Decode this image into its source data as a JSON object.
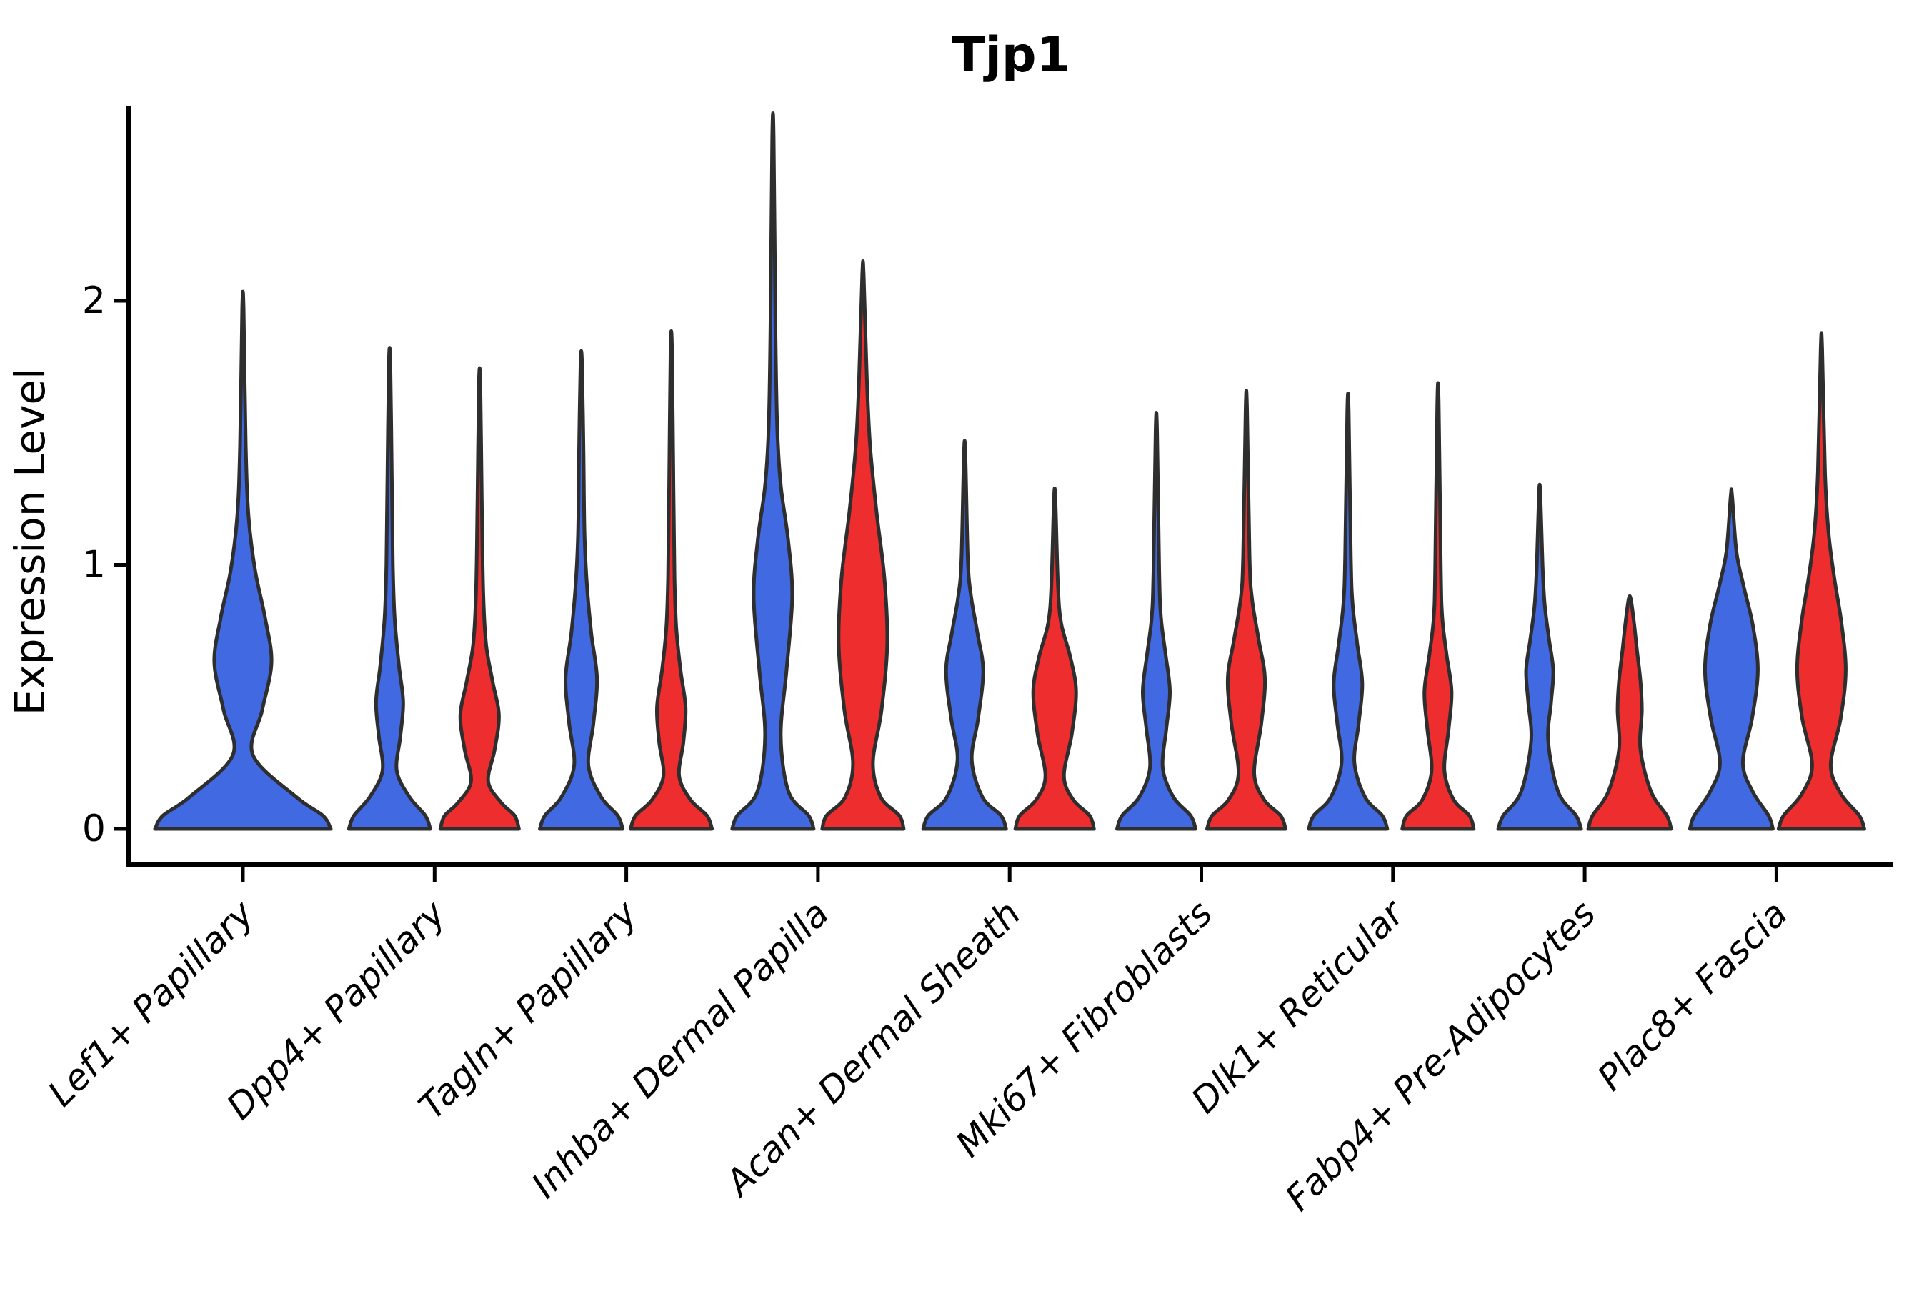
{
  "title": "Tjp1",
  "colors": {
    "violin_blue": "#4169E1",
    "violin_red": "#EE2E2E",
    "violin_outline": "#2E2E2E",
    "axis": "#000000"
  },
  "chart_data": {
    "type": "violin",
    "title": "Tjp1",
    "xlabel": "",
    "ylabel": "Expression Level",
    "yticks": [
      0,
      1,
      2
    ],
    "ylim": [
      -0.24,
      2.73
    ],
    "grid": false,
    "legend_position": "none",
    "xticklabel_rotation_deg": 45,
    "xticklabel_style": "italic",
    "categories": [
      "Lef1+ Papillary",
      "Dpp4+ Papillary",
      "Tagln+ Papillary",
      "Inhba+ Dermal Papilla",
      "Acan+ Dermal Sheath",
      "Mki67+ Fibroblasts",
      "Dlk1+ Reticular",
      "Fabp4+ Pre-Adipocytes",
      "Plac8+ Fascia"
    ],
    "series_colors": {
      "left_violin": "#4169E1",
      "right_violin": "#EE2E2E"
    },
    "groups": [
      {
        "category": "Lef1+ Papillary",
        "violins": [
          {
            "side": "single",
            "color": "#4169E1",
            "max": 1.97,
            "profile": [
              [
                0,
                123
              ],
              [
                0.05,
                112
              ],
              [
                0.12,
                75
              ],
              [
                0.28,
                14
              ],
              [
                0.45,
                27
              ],
              [
                0.63,
                40
              ],
              [
                0.8,
                31
              ],
              [
                0.98,
                17
              ],
              [
                1.18,
                8
              ],
              [
                1.45,
                4
              ],
              [
                1.97,
                1
              ]
            ]
          }
        ]
      },
      {
        "category": "Dpp4+ Papillary",
        "violins": [
          {
            "side": "left",
            "color": "#4169E1",
            "max": 1.77,
            "profile": [
              [
                0,
                57
              ],
              [
                0.05,
                50
              ],
              [
                0.12,
                28
              ],
              [
                0.22,
                10
              ],
              [
                0.35,
                15
              ],
              [
                0.48,
                19
              ],
              [
                0.62,
                13
              ],
              [
                0.8,
                7
              ],
              [
                1.0,
                4.5
              ],
              [
                1.35,
                3
              ],
              [
                1.77,
                1
              ]
            ]
          },
          {
            "side": "right",
            "color": "#EE2E2E",
            "max": 1.69,
            "profile": [
              [
                0,
                55
              ],
              [
                0.05,
                49
              ],
              [
                0.1,
                30
              ],
              [
                0.18,
                12
              ],
              [
                0.3,
                21
              ],
              [
                0.43,
                27
              ],
              [
                0.56,
                18
              ],
              [
                0.7,
                9
              ],
              [
                0.9,
                5
              ],
              [
                1.25,
                3
              ],
              [
                1.69,
                1
              ]
            ]
          }
        ]
      },
      {
        "category": "Tagln+ Papillary",
        "violins": [
          {
            "side": "left",
            "color": "#4169E1",
            "max": 1.77,
            "profile": [
              [
                0,
                58
              ],
              [
                0.05,
                51
              ],
              [
                0.12,
                28
              ],
              [
                0.24,
                10
              ],
              [
                0.4,
                17
              ],
              [
                0.57,
                22
              ],
              [
                0.74,
                14
              ],
              [
                0.92,
                8
              ],
              [
                1.12,
                4.5
              ],
              [
                1.45,
                3
              ],
              [
                1.77,
                1
              ]
            ]
          },
          {
            "side": "right",
            "color": "#EE2E2E",
            "max": 1.82,
            "profile": [
              [
                0,
                57
              ],
              [
                0.05,
                50
              ],
              [
                0.11,
                27
              ],
              [
                0.2,
                11
              ],
              [
                0.33,
                17
              ],
              [
                0.46,
                20
              ],
              [
                0.6,
                13
              ],
              [
                0.76,
                7
              ],
              [
                0.95,
                4.5
              ],
              [
                1.3,
                3
              ],
              [
                1.82,
                1
              ]
            ]
          }
        ]
      },
      {
        "category": "Inhba+ Dermal Papilla",
        "violins": [
          {
            "side": "left",
            "color": "#4169E1",
            "max": 2.62,
            "profile": [
              [
                0,
                57
              ],
              [
                0.05,
                50
              ],
              [
                0.14,
                22
              ],
              [
                0.35,
                11
              ],
              [
                0.6,
                19
              ],
              [
                0.88,
                27
              ],
              [
                1.1,
                21
              ],
              [
                1.3,
                11
              ],
              [
                1.52,
                6
              ],
              [
                1.9,
                3.5
              ],
              [
                2.62,
                1
              ]
            ]
          },
          {
            "side": "right",
            "color": "#EE2E2E",
            "max": 2.1,
            "profile": [
              [
                0,
                57
              ],
              [
                0.05,
                51
              ],
              [
                0.12,
                25
              ],
              [
                0.25,
                14
              ],
              [
                0.45,
                26
              ],
              [
                0.7,
                34
              ],
              [
                0.95,
                30
              ],
              [
                1.2,
                19
              ],
              [
                1.45,
                10
              ],
              [
                1.7,
                5.5
              ],
              [
                2.1,
                1
              ]
            ]
          }
        ]
      },
      {
        "category": "Acan+ Dermal Sheath",
        "violins": [
          {
            "side": "left",
            "color": "#4169E1",
            "max": 1.42,
            "profile": [
              [
                0,
                58
              ],
              [
                0.05,
                51
              ],
              [
                0.12,
                25
              ],
              [
                0.26,
                10
              ],
              [
                0.42,
                19
              ],
              [
                0.6,
                26
              ],
              [
                0.74,
                18
              ],
              [
                0.88,
                9
              ],
              [
                1.02,
                4.5
              ],
              [
                1.42,
                1
              ]
            ]
          },
          {
            "side": "right",
            "color": "#EE2E2E",
            "max": 1.25,
            "profile": [
              [
                0,
                55
              ],
              [
                0.05,
                49
              ],
              [
                0.11,
                26
              ],
              [
                0.2,
                13
              ],
              [
                0.36,
                24
              ],
              [
                0.52,
                30
              ],
              [
                0.65,
                22
              ],
              [
                0.78,
                9
              ],
              [
                0.93,
                4.5
              ],
              [
                1.25,
                1
              ]
            ]
          }
        ]
      },
      {
        "category": "Mki67+ Fibroblasts",
        "violins": [
          {
            "side": "left",
            "color": "#4169E1",
            "max": 1.51,
            "profile": [
              [
                0,
                55
              ],
              [
                0.05,
                48
              ],
              [
                0.12,
                24
              ],
              [
                0.23,
                9
              ],
              [
                0.38,
                14
              ],
              [
                0.52,
                19
              ],
              [
                0.66,
                13
              ],
              [
                0.8,
                6.5
              ],
              [
                0.98,
                4
              ],
              [
                1.51,
                1
              ]
            ]
          },
          {
            "side": "right",
            "color": "#EE2E2E",
            "max": 1.59,
            "profile": [
              [
                0,
                55
              ],
              [
                0.05,
                48
              ],
              [
                0.11,
                25
              ],
              [
                0.21,
                11
              ],
              [
                0.4,
                21
              ],
              [
                0.57,
                26
              ],
              [
                0.72,
                17
              ],
              [
                0.87,
                8
              ],
              [
                1.03,
                4.5
              ],
              [
                1.59,
                1
              ]
            ]
          }
        ]
      },
      {
        "category": "Dlk1+ Reticular",
        "violins": [
          {
            "side": "left",
            "color": "#4169E1",
            "max": 1.58,
            "profile": [
              [
                0,
                55
              ],
              [
                0.05,
                48
              ],
              [
                0.12,
                24
              ],
              [
                0.25,
                9
              ],
              [
                0.4,
                15
              ],
              [
                0.55,
                20
              ],
              [
                0.7,
                13
              ],
              [
                0.85,
                6.5
              ],
              [
                1.03,
                4
              ],
              [
                1.58,
                1
              ]
            ]
          },
          {
            "side": "right",
            "color": "#EE2E2E",
            "max": 1.61,
            "profile": [
              [
                0,
                50
              ],
              [
                0.05,
                44
              ],
              [
                0.11,
                22
              ],
              [
                0.22,
                9
              ],
              [
                0.38,
                15
              ],
              [
                0.52,
                19
              ],
              [
                0.66,
                12
              ],
              [
                0.8,
                6
              ],
              [
                0.98,
                4
              ],
              [
                1.61,
                1
              ]
            ]
          }
        ]
      },
      {
        "category": "Fabp4+ Pre-Adipocytes",
        "violins": [
          {
            "side": "left",
            "color": "#4169E1",
            "max": 1.27,
            "profile": [
              [
                0,
                58
              ],
              [
                0.05,
                51
              ],
              [
                0.14,
                26
              ],
              [
                0.33,
                12
              ],
              [
                0.48,
                16
              ],
              [
                0.6,
                19
              ],
              [
                0.72,
                13
              ],
              [
                0.85,
                7
              ],
              [
                1.0,
                4
              ],
              [
                1.27,
                1
              ]
            ]
          },
          {
            "side": "right",
            "color": "#EE2E2E",
            "max": 0.87,
            "profile": [
              [
                0,
                58
              ],
              [
                0.05,
                52
              ],
              [
                0.14,
                30
              ],
              [
                0.3,
                15
              ],
              [
                0.45,
                17
              ],
              [
                0.56,
                15
              ],
              [
                0.68,
                10
              ],
              [
                0.78,
                6
              ],
              [
                0.87,
                1.5
              ]
            ]
          }
        ]
      },
      {
        "category": "Plac8+ Fascia",
        "violins": [
          {
            "side": "left",
            "color": "#4169E1",
            "max": 1.26,
            "profile": [
              [
                0,
                58
              ],
              [
                0.05,
                52
              ],
              [
                0.14,
                30
              ],
              [
                0.25,
                16
              ],
              [
                0.42,
                29
              ],
              [
                0.6,
                37
              ],
              [
                0.77,
                30
              ],
              [
                0.92,
                17
              ],
              [
                1.05,
                7
              ],
              [
                1.26,
                1
              ]
            ]
          },
          {
            "side": "right",
            "color": "#EE2E2E",
            "max": 1.82,
            "profile": [
              [
                0,
                60
              ],
              [
                0.05,
                53
              ],
              [
                0.13,
                28
              ],
              [
                0.24,
                13
              ],
              [
                0.42,
                27
              ],
              [
                0.6,
                34
              ],
              [
                0.78,
                28
              ],
              [
                0.95,
                18
              ],
              [
                1.12,
                10
              ],
              [
                1.35,
                5
              ],
              [
                1.82,
                1
              ]
            ]
          }
        ]
      }
    ]
  }
}
